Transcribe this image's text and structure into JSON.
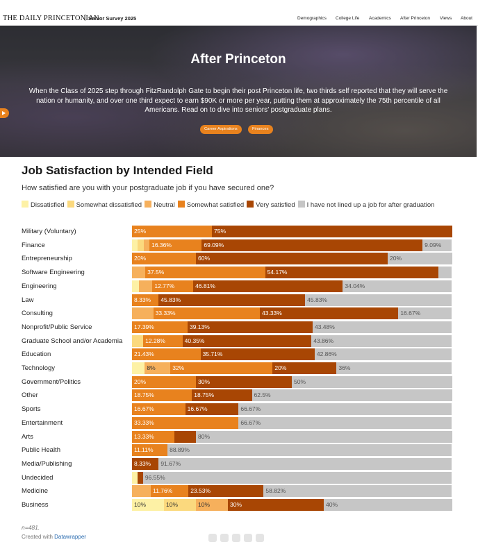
{
  "topnav": {
    "brand": "THE DAILY PRINCETONIAN",
    "separator": "|",
    "subtitle": "Senior Survey 2025",
    "items": [
      "Demographics",
      "College Life",
      "Academics",
      "After Princeton",
      "Views",
      "About"
    ]
  },
  "hero": {
    "title": "After Princeton",
    "text": "When the Class of 2025 step through FitzRandolph Gate to begin their post Princeton life, two thirds self reported that they will serve the nation or humanity, and over one third expect to earn $90K or more per year, putting them at approximately the 75th percentile of all Americans. Read on to dive into seniors’ postgraduate plans.",
    "buttons": [
      "Career Aspirations",
      "Finances"
    ]
  },
  "chart_data": {
    "type": "bar",
    "stacked": true,
    "orientation": "horizontal",
    "title": "Job Satisfaction by Intended Field",
    "subtitle": "How satisfied are you with your postgraduate job if you have secured one?",
    "legend": [
      {
        "name": "Dissatisfied",
        "color": "#fdf1a5"
      },
      {
        "name": "Somewhat dissatisfied",
        "color": "#fbd97e"
      },
      {
        "name": "Neutral",
        "color": "#f6b05c"
      },
      {
        "name": "Somewhat satisfied",
        "color": "#e8821e"
      },
      {
        "name": "Very satisfied",
        "color": "#a84604"
      },
      {
        "name": "I have not lined up a job for after graduation",
        "color": "#c6c6c6"
      }
    ],
    "label_colors": [
      "#333333",
      "#333333",
      "#333333",
      "#ffffff",
      "#ffffff",
      "#555555"
    ],
    "xlim": [
      0,
      100
    ],
    "rows": [
      {
        "name": "Military (Voluntary)",
        "values": [
          0,
          0,
          0,
          25,
          75,
          0
        ],
        "labels": [
          "",
          "",
          "",
          "25%",
          "75%",
          ""
        ]
      },
      {
        "name": "Finance",
        "values": [
          1.82,
          1.82,
          1.82,
          16.36,
          69.09,
          9.09
        ],
        "labels": [
          "",
          "",
          "",
          "16.36%",
          "69.09%",
          "9.09%"
        ]
      },
      {
        "name": "Entrepreneurship",
        "values": [
          0,
          0,
          0,
          20,
          60,
          20
        ],
        "labels": [
          "",
          "",
          "",
          "20%",
          "60%",
          "20%"
        ]
      },
      {
        "name": "Software Engineering",
        "values": [
          0,
          0,
          4.17,
          37.5,
          54.17,
          4.17
        ],
        "labels": [
          "",
          "",
          "",
          "37.5%",
          "54.17%",
          ""
        ]
      },
      {
        "name": "Engineering",
        "values": [
          2.13,
          0,
          4.25,
          12.77,
          46.81,
          34.04
        ],
        "labels": [
          "",
          "",
          "",
          "12.77%",
          "46.81%",
          "34.04%"
        ]
      },
      {
        "name": "Law",
        "values": [
          0,
          0,
          0,
          8.33,
          45.83,
          45.83
        ],
        "labels": [
          "",
          "",
          "",
          "8.33%",
          "45.83%",
          "45.83%"
        ]
      },
      {
        "name": "Consulting",
        "values": [
          0,
          0,
          6.67,
          33.33,
          43.33,
          16.67
        ],
        "labels": [
          "",
          "",
          "",
          "33.33%",
          "43.33%",
          "16.67%"
        ]
      },
      {
        "name": "Nonprofit/Public Service",
        "values": [
          0,
          0,
          0,
          17.39,
          39.13,
          43.48
        ],
        "labels": [
          "",
          "",
          "",
          "17.39%",
          "39.13%",
          "43.48%"
        ]
      },
      {
        "name": "Graduate School and/or Academia",
        "values": [
          0,
          3.51,
          0,
          12.28,
          40.35,
          43.86
        ],
        "labels": [
          "",
          "",
          "",
          "12.28%",
          "40.35%",
          "43.86%"
        ]
      },
      {
        "name": "Education",
        "values": [
          0,
          0,
          0,
          21.43,
          35.71,
          42.86
        ],
        "labels": [
          "",
          "",
          "",
          "21.43%",
          "35.71%",
          "42.86%"
        ]
      },
      {
        "name": "Technology",
        "values": [
          4,
          0,
          8,
          32,
          20,
          36
        ],
        "labels": [
          "",
          "",
          "8%",
          "32%",
          "20%",
          "36%"
        ]
      },
      {
        "name": "Government/Politics",
        "values": [
          0,
          0,
          0,
          20,
          30,
          50
        ],
        "labels": [
          "",
          "",
          "",
          "20%",
          "30%",
          "50%"
        ]
      },
      {
        "name": "Other",
        "values": [
          0,
          0,
          0,
          18.75,
          18.75,
          62.5
        ],
        "labels": [
          "",
          "",
          "",
          "18.75%",
          "18.75%",
          "62.5%"
        ]
      },
      {
        "name": "Sports",
        "values": [
          0,
          0,
          0,
          16.67,
          16.67,
          66.67
        ],
        "labels": [
          "",
          "",
          "",
          "16.67%",
          "16.67%",
          "66.67%"
        ]
      },
      {
        "name": "Entertainment",
        "values": [
          0,
          0,
          0,
          33.33,
          0,
          66.67
        ],
        "labels": [
          "",
          "",
          "",
          "33.33%",
          "",
          "66.67%"
        ]
      },
      {
        "name": "Arts",
        "values": [
          0,
          0,
          0,
          13.33,
          6.67,
          80
        ],
        "labels": [
          "",
          "",
          "",
          "13.33%",
          "",
          "80%"
        ]
      },
      {
        "name": "Public Health",
        "values": [
          0,
          0,
          0,
          11.11,
          0,
          88.89
        ],
        "labels": [
          "",
          "",
          "",
          "11.11%",
          "",
          "88.89%"
        ]
      },
      {
        "name": "Media/Publishing",
        "values": [
          0,
          0,
          0,
          0,
          8.33,
          91.67
        ],
        "labels": [
          "",
          "",
          "",
          "",
          "8.33%",
          "91.67%"
        ]
      },
      {
        "name": "Undecided",
        "values": [
          1.72,
          0,
          0,
          0,
          1.72,
          96.55
        ],
        "labels": [
          "",
          "",
          "",
          "",
          "",
          "96.55%"
        ]
      },
      {
        "name": "Medicine",
        "values": [
          0,
          0,
          5.89,
          11.76,
          23.53,
          58.82
        ],
        "labels": [
          "",
          "",
          "",
          "11.76%",
          "23.53%",
          "58.82%"
        ]
      },
      {
        "name": "Business",
        "values": [
          10,
          10,
          10,
          0,
          30,
          40
        ],
        "labels": [
          "10%",
          "10%",
          "10%",
          "",
          "30%",
          "40%"
        ]
      }
    ]
  },
  "footer": {
    "n": "n=481.",
    "credit_prefix": "Created with ",
    "credit_link": "Datawrapper"
  }
}
